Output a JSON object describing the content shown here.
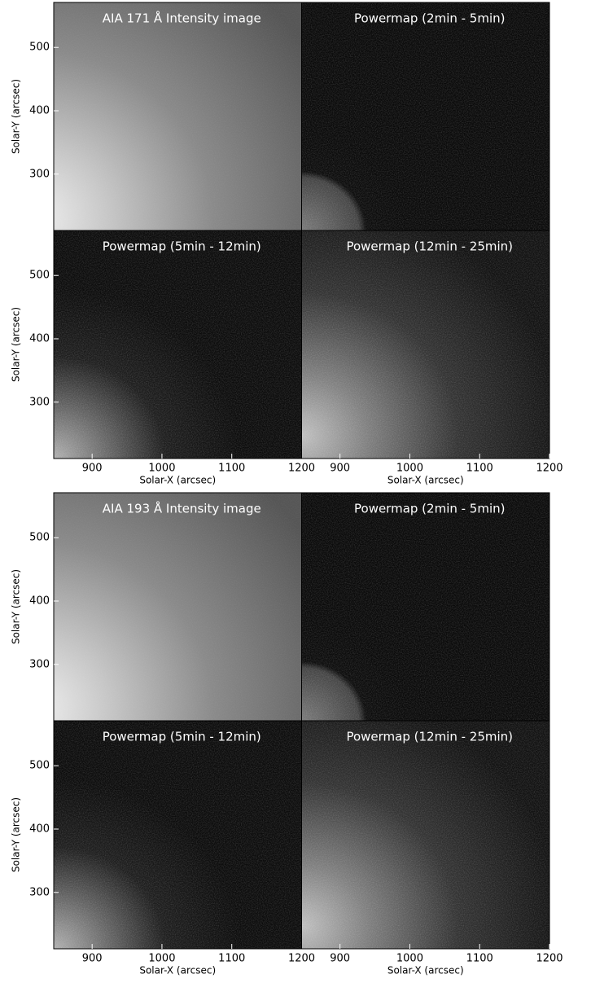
{
  "chart_data": [
    {
      "type": "image",
      "title": "AIA 171 Å Intensity image",
      "ylabel": "Solar-Y (arcsec)",
      "ylim": [
        211,
        571
      ],
      "yticks": [
        300,
        400,
        500
      ]
    },
    {
      "type": "image",
      "title": "Powermap (2min - 5min)"
    },
    {
      "type": "image",
      "title": "Powermap (5min - 12min)",
      "ylabel": "Solar-Y (arcsec)",
      "xlabel": "Solar-X (arcsec)",
      "xlim": [
        845,
        1200
      ],
      "ylim": [
        211,
        571
      ],
      "xticks": [
        900,
        1000,
        1100,
        1200
      ],
      "yticks": [
        300,
        400,
        500
      ]
    },
    {
      "type": "image",
      "title": "Powermap (12min - 25min)",
      "xlabel": "Solar-X (arcsec)",
      "xlim": [
        845,
        1200
      ],
      "xticks": [
        900,
        1000,
        1100,
        1200
      ]
    },
    {
      "type": "image",
      "title": "AIA 193 Å Intensity image",
      "ylabel": "Solar-Y (arcsec)",
      "ylim": [
        211,
        571
      ],
      "yticks": [
        300,
        400,
        500
      ]
    },
    {
      "type": "image",
      "title": "Powermap (2min - 5min)"
    },
    {
      "type": "image",
      "title": "Powermap (5min - 12min)",
      "ylabel": "Solar-Y (arcsec)",
      "xlabel": "Solar-X (arcsec)",
      "xlim": [
        845,
        1200
      ],
      "ylim": [
        211,
        571
      ],
      "xticks": [
        900,
        1000,
        1100,
        1200
      ],
      "yticks": [
        300,
        400,
        500
      ]
    },
    {
      "type": "image",
      "title": "Powermap (12min - 25min)",
      "xlabel": "Solar-X (arcsec)",
      "xlim": [
        845,
        1200
      ],
      "xticks": [
        900,
        1000,
        1100,
        1200
      ]
    }
  ]
}
